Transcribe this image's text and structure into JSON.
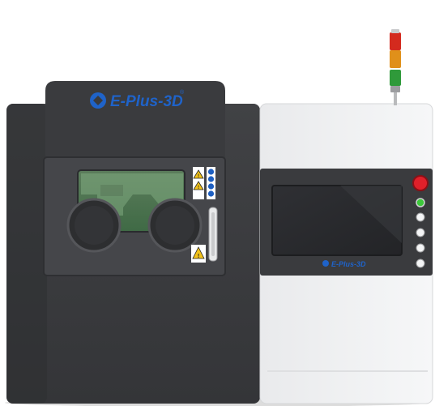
{
  "machine": {
    "brand_top": "E-Plus-3D",
    "registered_mark": "®",
    "brand_panel": "E-Plus-3D",
    "warning_symbol": "!",
    "colors": {
      "body_dark": "#3b3c3f",
      "body_darker": "#2a2b2d",
      "door": "#434447",
      "cabinet_light": "#f2f3f5",
      "brand_blue": "#1f63c9",
      "window_green": "#4f8a54",
      "beacon_red": "#d42a1e",
      "beacon_amber": "#e0901a",
      "beacon_green": "#2f9a3a",
      "estop_red": "#e0202a",
      "status_green": "#3cc83a"
    },
    "icons": [
      "laser-warning-icon",
      "hazard-warning-icon",
      "ppe-icons",
      "brand-logo-icon",
      "signal-tower-icon"
    ]
  }
}
